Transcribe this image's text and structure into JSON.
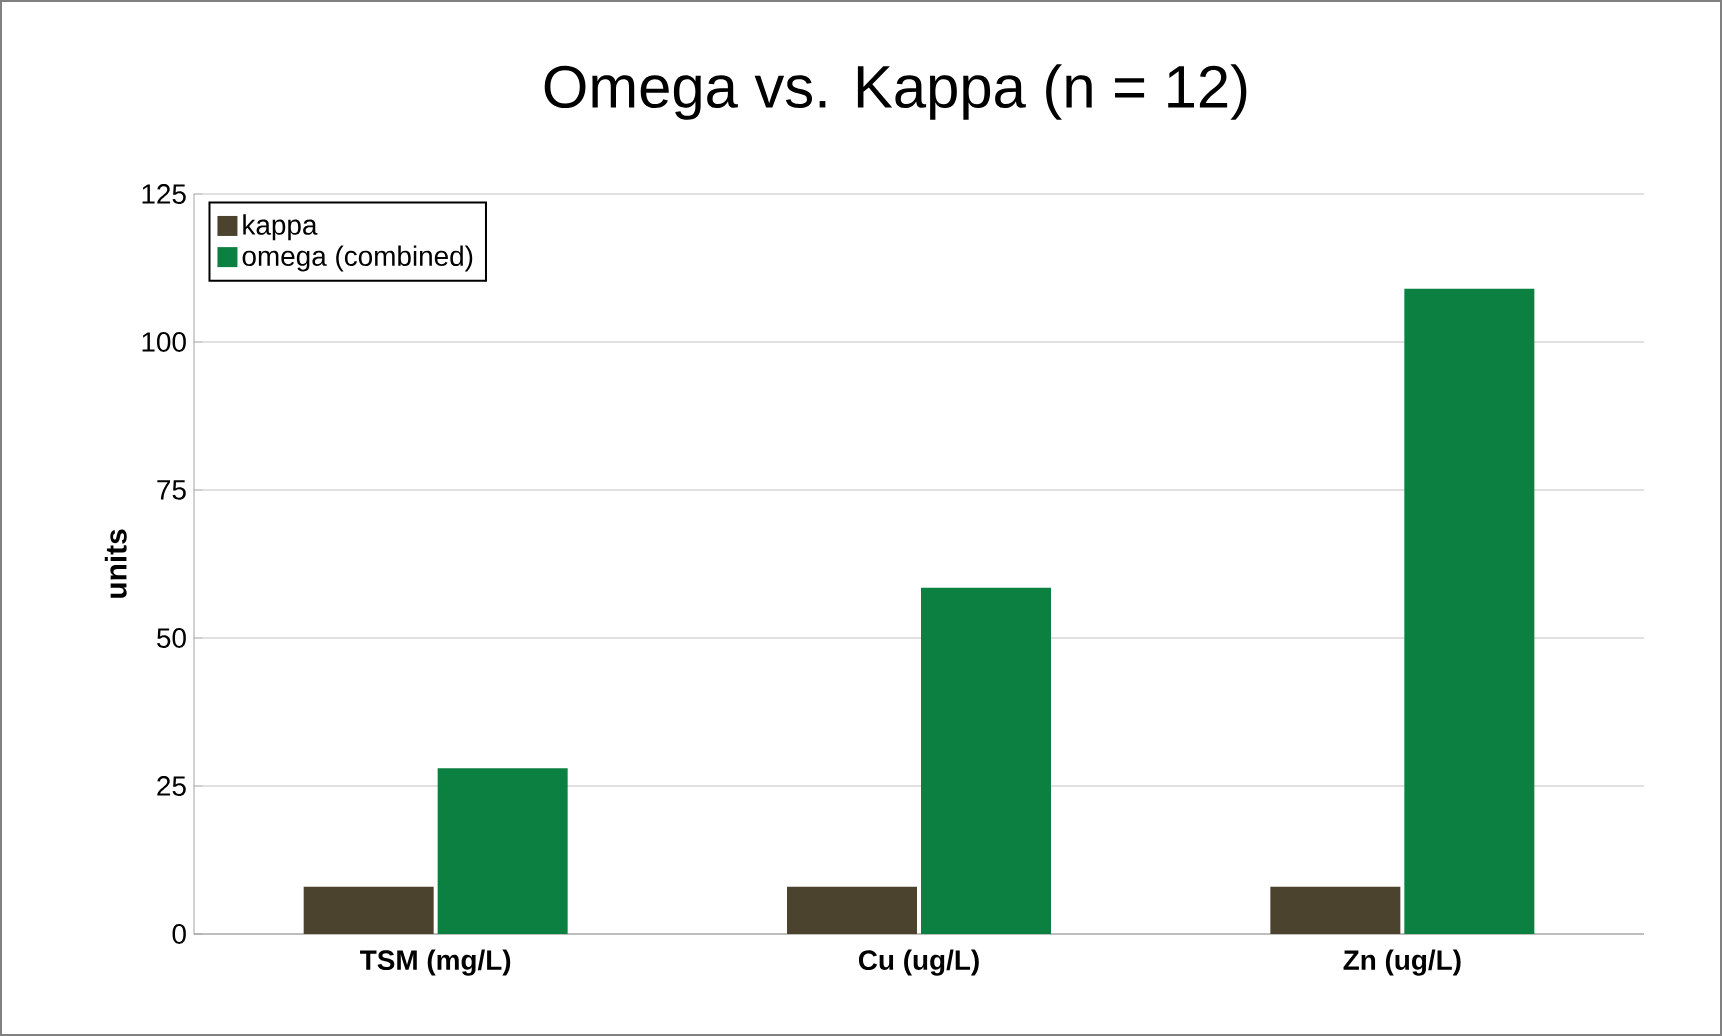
{
  "chart_data": {
    "type": "bar",
    "title": "Omega vs. Kappa (n = 12)",
    "ylabel": "units",
    "categories": [
      "TSM (mg/L)",
      "Cu (ug/L)",
      "Zn (ug/L)"
    ],
    "series": [
      {
        "name": "kappa",
        "color": "#4b432d",
        "values": [
          8,
          8,
          8
        ]
      },
      {
        "name": "omega (combined)",
        "color": "#0b8040",
        "values": [
          28,
          58.5,
          109
        ]
      }
    ],
    "ylim": [
      0,
      125
    ],
    "yticks": [
      0,
      25,
      50,
      75,
      100,
      125
    ],
    "grid": "y",
    "legend": "top left"
  }
}
